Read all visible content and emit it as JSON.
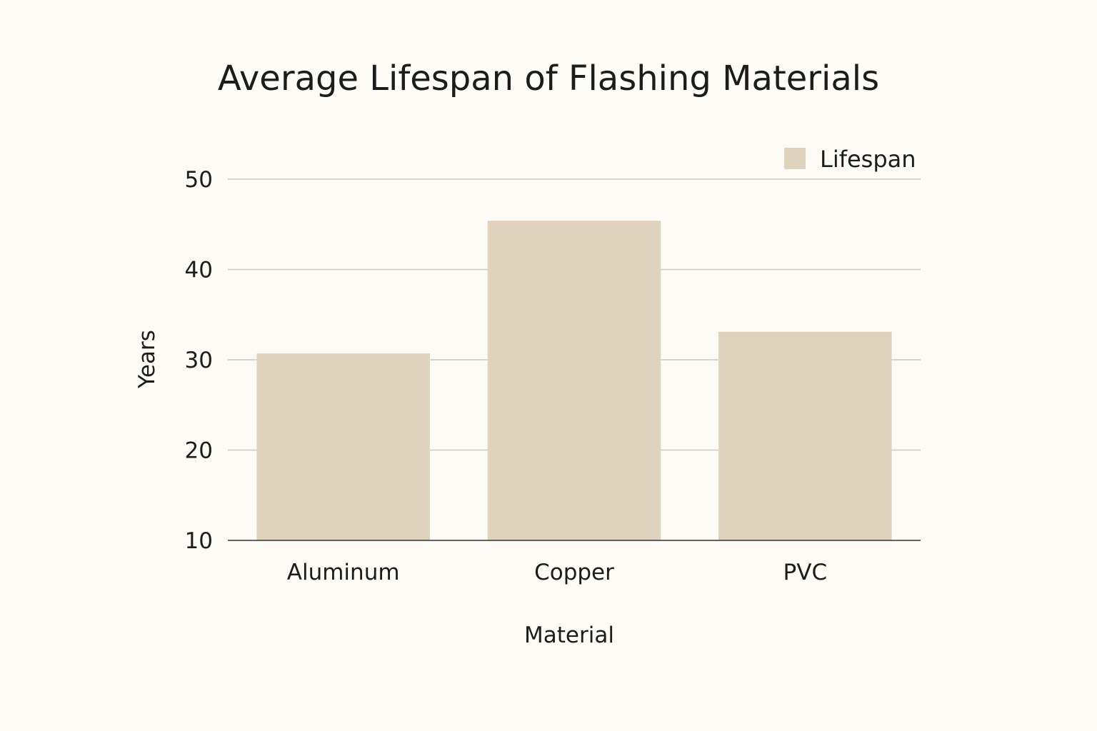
{
  "chart_data": {
    "type": "bar",
    "title": "Average Lifespan of Flashing Materials",
    "xlabel": "Material",
    "ylabel": "Years",
    "categories": [
      "Aluminum",
      "Copper",
      "PVC"
    ],
    "series": [
      {
        "name": "Lifespan",
        "values": [
          30.7,
          45.4,
          33.1
        ]
      }
    ],
    "ylim": [
      10,
      50
    ],
    "yticks": [
      10,
      20,
      30,
      40,
      50
    ],
    "grid": true,
    "legend": "top-right",
    "colors": {
      "bar": "#e0d3bd",
      "background": "#fdfbf5",
      "grid": "#c9c9c5",
      "axis": "#333333"
    }
  }
}
